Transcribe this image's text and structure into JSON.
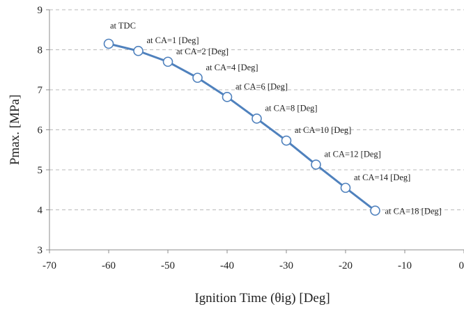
{
  "chart_data": {
    "type": "line",
    "xlabel": "Ignition Time (θig) [Deg]",
    "ylabel": "Pmax. [MPa]",
    "xlim": [
      -70,
      0
    ],
    "ylim": [
      3,
      9
    ],
    "xticks": [
      -70,
      -60,
      -50,
      -40,
      -30,
      -20,
      -10,
      0
    ],
    "yticks": [
      3,
      4,
      5,
      6,
      7,
      8,
      9
    ],
    "xtick_labels": [
      "-70",
      "-60",
      "-50",
      "-40",
      "-30",
      "-20",
      "-10",
      "0"
    ],
    "ytick_labels": [
      "3",
      "4",
      "5",
      "6",
      "7",
      "8",
      "9"
    ],
    "grid": "horizontal-dashed",
    "line_color": "#4f81bd",
    "marker": "open-circle",
    "series": [
      {
        "x": [
          -60,
          -55,
          -50,
          -45,
          -40,
          -35,
          -30,
          -25,
          -20,
          -15
        ],
        "y": [
          8.15,
          7.97,
          7.7,
          7.3,
          6.82,
          6.28,
          5.73,
          5.13,
          4.55,
          3.98
        ],
        "point_labels": [
          "at TDC",
          "at CA=1 [Deg]",
          "at CA=2 [Deg]",
          "at CA=4 [Deg]",
          "at CA=6 [Deg]",
          "at CA=8 [Deg]",
          "at CA=10 [Deg]",
          "at CA=12 [Deg]",
          "at CA=14 [Deg]",
          "at CA=18 [Deg]"
        ]
      }
    ]
  }
}
